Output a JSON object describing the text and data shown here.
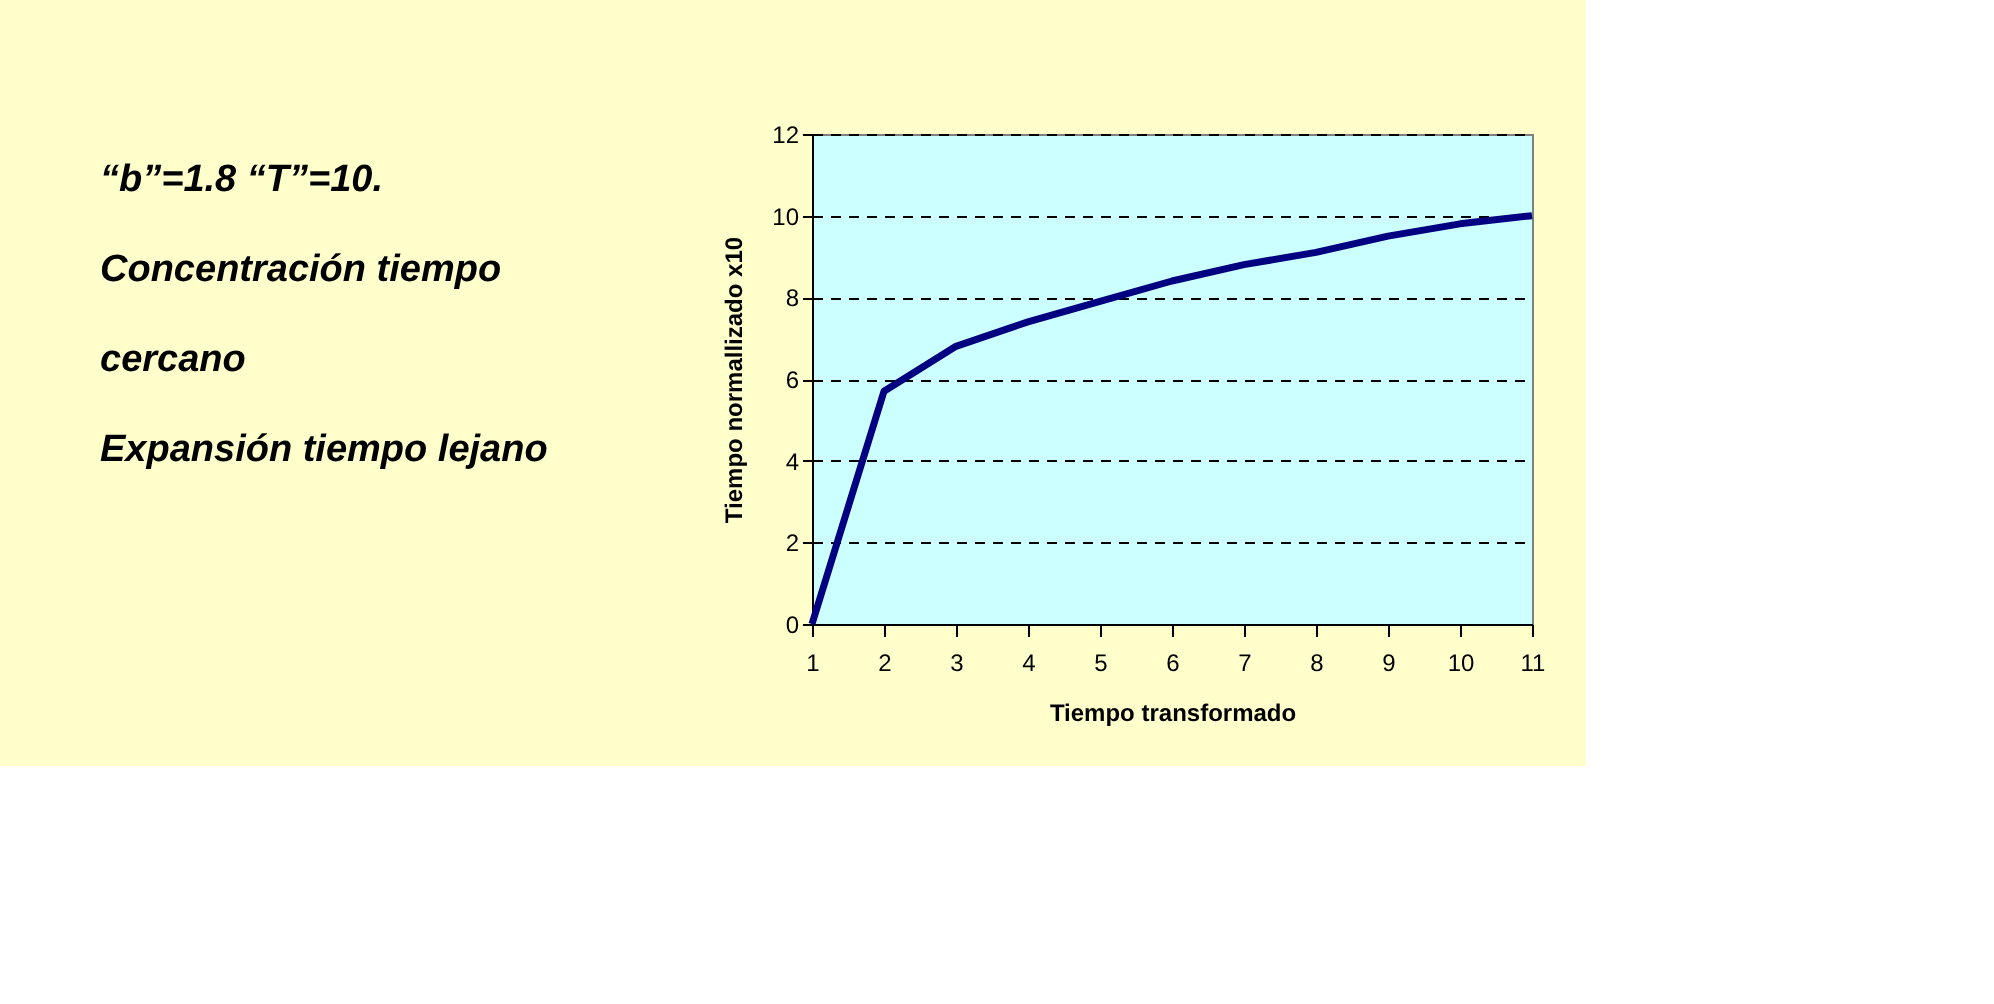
{
  "chart_data": {
    "type": "line",
    "xlabel": "Tiempo transformado",
    "ylabel": "Tiempo normallizado x10",
    "annotations": [
      "“b”=1.8 “T”=10.",
      "Concentración tiempo",
      "cercano",
      "Expansión tiempo lejano"
    ],
    "x": [
      1,
      2,
      3,
      4,
      5,
      6,
      7,
      8,
      9,
      10,
      11
    ],
    "series": [
      {
        "color": "#000080",
        "values": [
          0,
          5.7,
          6.8,
          7.4,
          7.9,
          8.4,
          8.8,
          9.1,
          9.5,
          9.8,
          10
        ]
      }
    ],
    "xlim": [
      1,
      11
    ],
    "xticks": [
      1,
      2,
      3,
      4,
      5,
      6,
      7,
      8,
      9,
      10,
      11
    ],
    "ylim": [
      0,
      12
    ],
    "yticks": [
      0,
      2,
      4,
      6,
      8,
      10,
      12
    ],
    "grid": "y",
    "marker": "none",
    "line_style": "solid"
  }
}
